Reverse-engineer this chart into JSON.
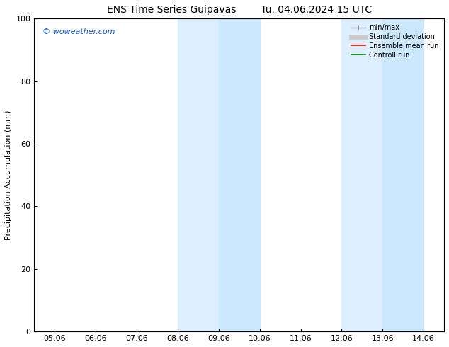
{
  "title_left": "ENS Time Series Guipavas",
  "title_right": "Tu. 04.06.2024 15 UTC",
  "ylabel": "Precipitation Accumulation (mm)",
  "xlabel": "",
  "ylim": [
    0,
    100
  ],
  "xlim": [
    0,
    9
  ],
  "xtick_labels": [
    "05.06",
    "06.06",
    "07.06",
    "08.06",
    "09.06",
    "10.06",
    "11.06",
    "12.06",
    "13.06",
    "14.06"
  ],
  "ytick_values": [
    0,
    20,
    40,
    60,
    80,
    100
  ],
  "shaded_bands": [
    {
      "x_start": 3.0,
      "x_end": 4.0
    },
    {
      "x_start": 4.0,
      "x_end": 5.0
    },
    {
      "x_start": 7.0,
      "x_end": 8.0
    },
    {
      "x_start": 8.0,
      "x_end": 9.0
    }
  ],
  "band_colors": [
    "#ddeeff",
    "#cce8ff",
    "#ddeeff",
    "#cce8ff"
  ],
  "watermark_text": "© woweather.com",
  "watermark_color": "#1155cc",
  "background_color": "#ffffff",
  "title_fontsize": 10,
  "label_fontsize": 8,
  "tick_fontsize": 8
}
